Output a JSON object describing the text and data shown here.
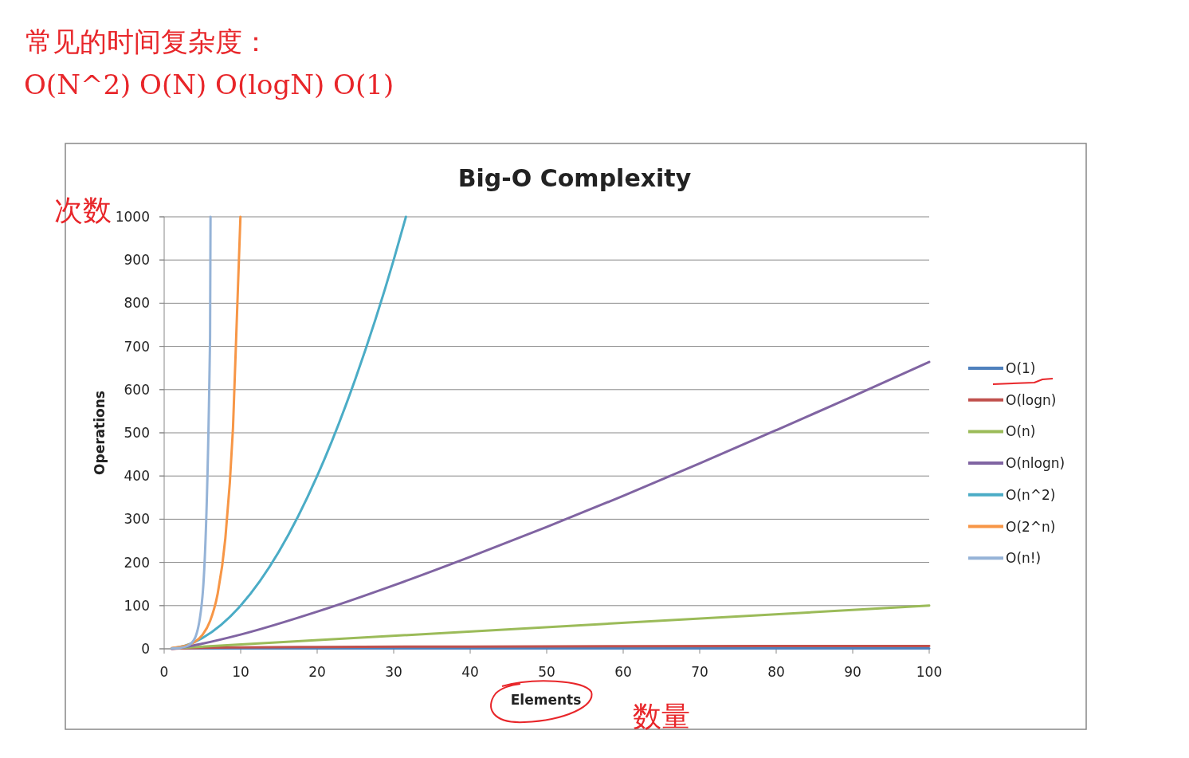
{
  "chart_data": {
    "type": "line",
    "title": "Big-O Complexity",
    "xlabel": "Elements",
    "ylabel": "Operations",
    "annotations": [
      "常见的时间复杂度：",
      "O(N^2) O(N) O(logN) O(1)",
      "次数",
      "数量"
    ],
    "xlim": [
      0,
      100
    ],
    "xticks": [
      0,
      10,
      20,
      30,
      40,
      50,
      60,
      70,
      80,
      90,
      100
    ],
    "ylim": [
      0,
      1000
    ],
    "yticks": [
      0,
      100,
      200,
      300,
      400,
      500,
      600,
      700,
      800,
      900,
      1000
    ],
    "grid": "y",
    "legend": "right",
    "marker": "none",
    "line_style": "solid",
    "series": [
      {
        "name": "O(1)",
        "color": "#4f81bd",
        "x": [
          1,
          100
        ],
        "values": [
          1,
          1
        ]
      },
      {
        "name": "O(logn)",
        "color": "#c0504d",
        "x": [
          1,
          2,
          5,
          10,
          20,
          40,
          60,
          80,
          100
        ],
        "values": [
          0,
          1,
          2.3,
          3.3,
          4.3,
          5.3,
          5.9,
          6.3,
          6.6
        ]
      },
      {
        "name": "O(n)",
        "color": "#9bbb59",
        "x": [
          1,
          100
        ],
        "values": [
          1,
          100
        ]
      },
      {
        "name": "O(nlogn)",
        "color": "#8064a2",
        "x": [
          1,
          2,
          5,
          10,
          20,
          30,
          40,
          50,
          60,
          70,
          80,
          90,
          100
        ],
        "values": [
          0,
          2,
          12,
          33,
          86,
          147,
          213,
          282,
          354,
          429,
          506,
          584,
          664
        ]
      },
      {
        "name": "O(n^2)",
        "color": "#4bacc6",
        "x": [
          1,
          2,
          5,
          10,
          15,
          20,
          25,
          30,
          31.6
        ],
        "values": [
          1,
          4,
          25,
          100,
          225,
          400,
          625,
          900,
          1000
        ]
      },
      {
        "name": "O(2^n)",
        "color": "#f79646",
        "x": [
          1,
          2,
          3,
          4,
          5,
          6,
          7,
          8,
          9,
          9.97
        ],
        "values": [
          2,
          4,
          8,
          16,
          32,
          64,
          128,
          256,
          512,
          1000
        ]
      },
      {
        "name": "O(n!)",
        "color": "#95b3d7",
        "x": [
          1,
          2,
          3,
          4,
          5,
          6,
          6.06
        ],
        "values": [
          1,
          2,
          6,
          24,
          120,
          720,
          1000
        ]
      }
    ]
  }
}
